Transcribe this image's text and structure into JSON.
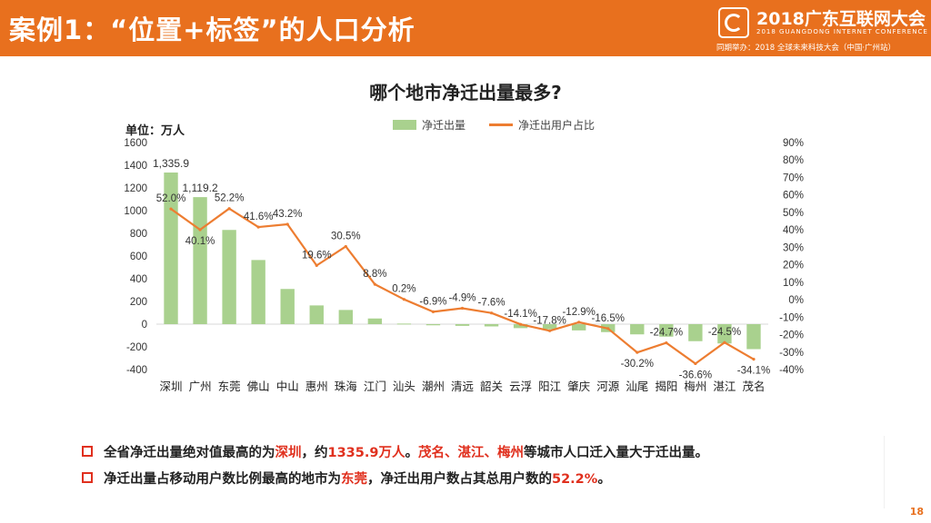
{
  "header": {
    "title": "案例1：“位置+标签”的人口分析",
    "logo_name": "2018广东互联网大会",
    "logo_sub": "2018 GUANGDONG INTERNET CONFERENCE",
    "logo_co": "同期举办：2018 全球未来科技大会（中国·广州站）"
  },
  "chart_data": {
    "type": "bar",
    "title": "哪个地市净迁出量最多?",
    "unit_label": "单位：万人",
    "categories": [
      "深圳",
      "广州",
      "东莞",
      "佛山",
      "中山",
      "惠州",
      "珠海",
      "江门",
      "汕头",
      "潮州",
      "清远",
      "韶关",
      "云浮",
      "阳江",
      "肇庆",
      "河源",
      "汕尾",
      "揭阳",
      "梅州",
      "湛江",
      "茂名"
    ],
    "series": [
      {
        "name": "净迁出量",
        "type": "bar",
        "axis": "left",
        "color": "#a9d18e",
        "values": [
          1335.9,
          1119.2,
          830,
          565,
          310,
          165,
          125,
          50,
          5,
          -10,
          -15,
          -20,
          -35,
          -45,
          -55,
          -70,
          -90,
          -110,
          -150,
          -170,
          -220
        ],
        "labels": {
          "0": "1,335.9",
          "1": "1,119.2"
        }
      },
      {
        "name": "净迁出用户占比",
        "type": "line",
        "axis": "right",
        "color": "#ed7d31",
        "values": [
          52.0,
          40.1,
          52.2,
          41.6,
          43.2,
          19.6,
          30.5,
          8.8,
          0.2,
          -6.9,
          -4.9,
          -7.6,
          -14.1,
          -17.8,
          -12.9,
          -16.5,
          -30.2,
          -24.7,
          -36.6,
          -24.5,
          -34.1
        ],
        "labels": [
          "52.0%",
          "40.1%",
          "52.2%",
          "41.6%",
          "43.2%",
          "19.6%",
          "30.5%",
          "8.8%",
          "0.2%",
          "-6.9%",
          "-4.9%",
          "-7.6%",
          "-14.1%",
          "-17.8%",
          "-12.9%",
          "-16.5%",
          "-30.2%",
          "-24.7%",
          "-36.6%",
          "-24.5%",
          "-34.1%"
        ]
      }
    ],
    "ylim_left": [
      -400,
      1600
    ],
    "yticks_left": [
      "1600",
      "1400",
      "1200",
      "1000",
      "800",
      "600",
      "400",
      "200",
      "0",
      "-200",
      "-400"
    ],
    "ylim_right": [
      -40,
      90
    ],
    "yticks_right": [
      "90%",
      "80%",
      "70%",
      "60%",
      "50%",
      "40%",
      "30%",
      "20%",
      "10%",
      "0%",
      "-10%",
      "-20%",
      "-30%",
      "-40%"
    ],
    "legend_position": "top",
    "grid": false
  },
  "bullets": [
    {
      "parts": [
        {
          "text": "全省净迁出量绝对值最高的为",
          "hl": false
        },
        {
          "text": "深圳",
          "hl": true
        },
        {
          "text": "，约",
          "hl": false
        },
        {
          "text": "1335.9万人",
          "hl": true
        },
        {
          "text": "。",
          "hl": false
        },
        {
          "text": "茂名、湛江、梅州",
          "hl": true
        },
        {
          "text": "等城市人口迁入量大于迁出量。",
          "hl": false
        }
      ]
    },
    {
      "parts": [
        {
          "text": "净迁出量占移动用户数比例最高的地市为",
          "hl": false
        },
        {
          "text": "东莞",
          "hl": true
        },
        {
          "text": "，净迁出用户数占其总用户数的",
          "hl": false
        },
        {
          "text": "52.2%",
          "hl": true
        },
        {
          "text": "。",
          "hl": false
        }
      ]
    }
  ],
  "page_number": "18",
  "colors": {
    "accent": "#e8701e",
    "highlight": "#e0301e"
  }
}
